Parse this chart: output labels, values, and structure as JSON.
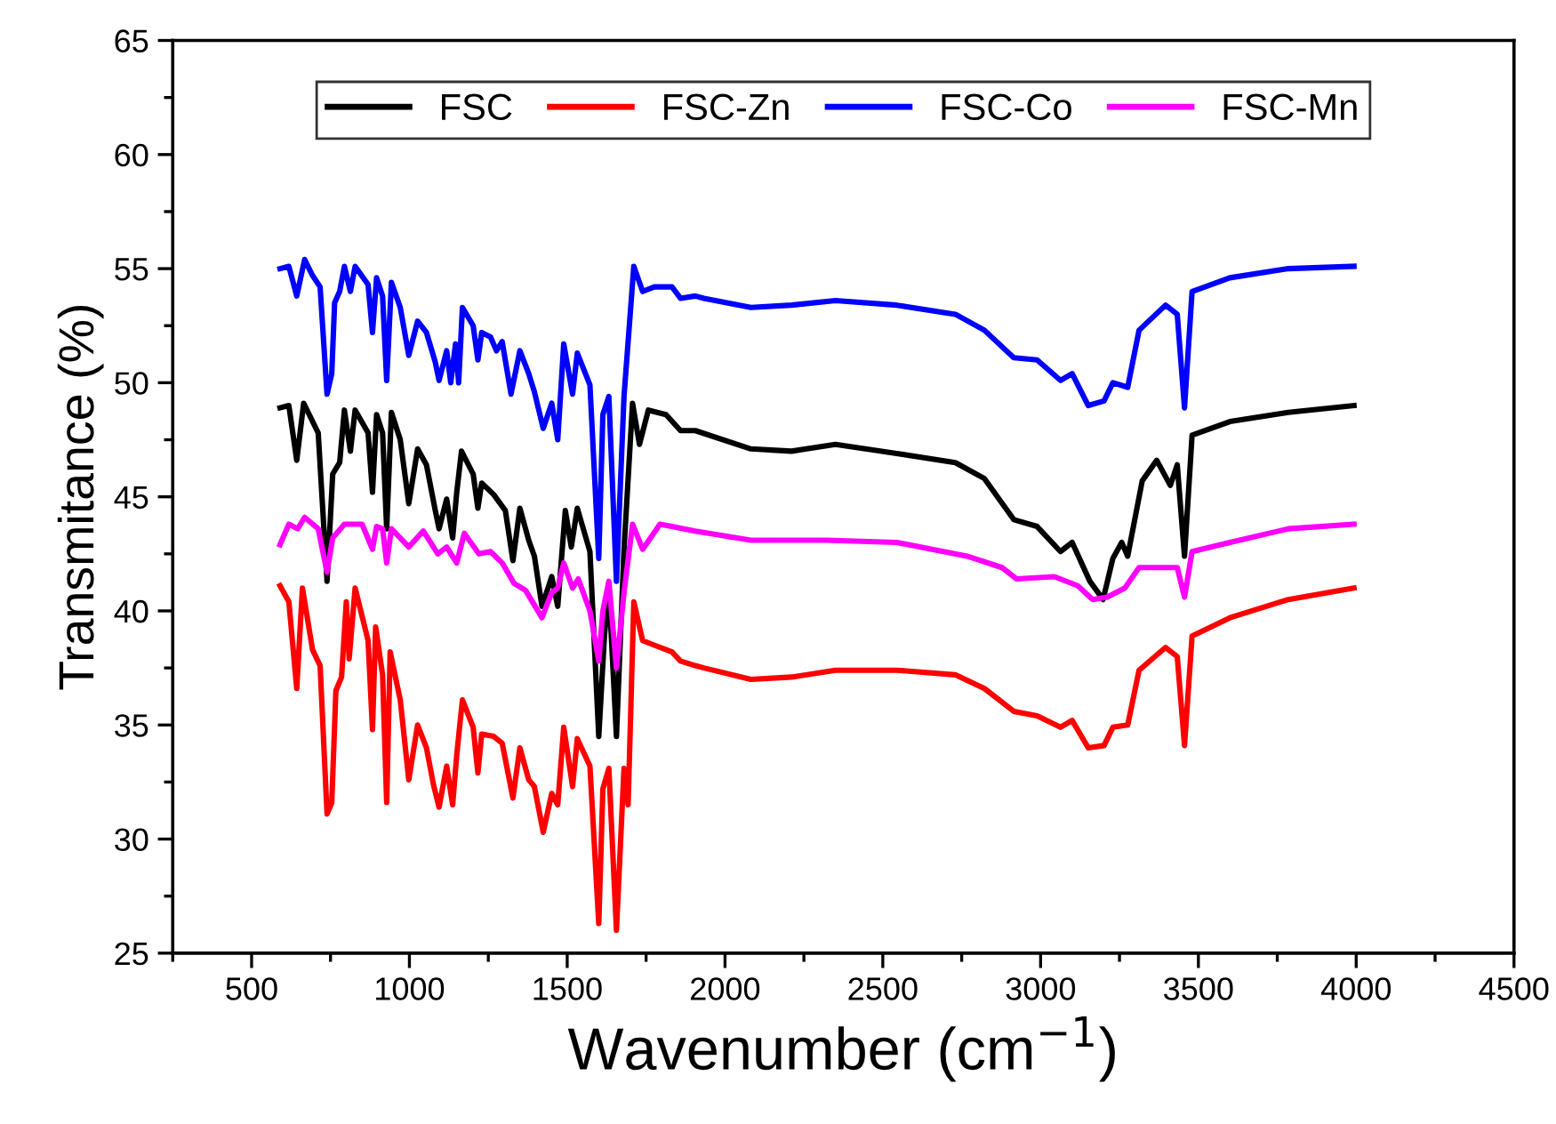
{
  "chart_data": {
    "type": "line",
    "xlabel": "Wavenumber (cm$^{−1}$)",
    "ylabel": "Transmitance (%)",
    "xlim": [
      250,
      4500
    ],
    "xticks": [
      500,
      1000,
      1500,
      2000,
      2500,
      3000,
      3500,
      4000,
      4500
    ],
    "ylim": [
      25,
      65
    ],
    "yticks": [
      25,
      30,
      35,
      40,
      45,
      50,
      55,
      60,
      65
    ],
    "grid": false,
    "legend": "top",
    "marker": "none",
    "line_style": "solid",
    "series": [
      {
        "name": "FSC",
        "color": "#000000",
        "x": [
          590,
          618,
          643,
          665,
          711,
          739,
          757,
          779,
          794,
          813,
          828,
          869,
          883,
          896,
          915,
          928,
          943,
          971,
          998,
          1026,
          1054,
          1082,
          1094,
          1118,
          1137,
          1150,
          1165,
          1202,
          1217,
          1229,
          1267,
          1304,
          1328,
          1350,
          1378,
          1396,
          1420,
          1451,
          1470,
          1494,
          1513,
          1532,
          1572,
          1600,
          1618,
          1632,
          1656,
          1680,
          1707,
          1729,
          1757,
          1813,
          1859,
          1906,
          2082,
          2211,
          2350,
          2544,
          2730,
          2822,
          2915,
          2989,
          3063,
          3100,
          3156,
          3198,
          3229,
          3257,
          3276,
          3322,
          3368,
          3411,
          3433,
          3456,
          3480,
          3600,
          3785,
          3993
        ],
        "values": [
          48.9,
          49.0,
          46.6,
          49.1,
          47.8,
          41.3,
          46.0,
          46.5,
          48.8,
          47.0,
          48.8,
          47.8,
          45.2,
          48.6,
          47.8,
          43.6,
          48.7,
          47.5,
          44.7,
          47.1,
          46.4,
          44.4,
          43.6,
          44.9,
          43.2,
          45.2,
          47.0,
          46.0,
          44.5,
          45.6,
          45.1,
          44.4,
          42.2,
          44.5,
          43.1,
          42.4,
          40.2,
          41.5,
          40.2,
          44.4,
          42.8,
          44.5,
          42.6,
          34.5,
          38.9,
          41.0,
          34.5,
          42.7,
          49.1,
          47.3,
          48.8,
          48.6,
          47.9,
          47.9,
          47.1,
          47.0,
          47.3,
          46.9,
          46.5,
          45.8,
          44.0,
          43.7,
          42.6,
          43.0,
          41.3,
          40.5,
          42.3,
          43.0,
          42.4,
          45.7,
          46.6,
          45.5,
          46.4,
          42.4,
          47.7,
          48.3,
          48.7,
          49.0
        ]
      },
      {
        "name": "FSC-Zn",
        "color": "#ff0000",
        "x": [
          590,
          618,
          643,
          661,
          693,
          717,
          739,
          754,
          767,
          785,
          800,
          809,
          828,
          869,
          883,
          893,
          915,
          928,
          939,
          971,
          998,
          1026,
          1054,
          1076,
          1094,
          1118,
          1137,
          1150,
          1168,
          1202,
          1217,
          1229,
          1267,
          1294,
          1328,
          1350,
          1378,
          1396,
          1424,
          1451,
          1470,
          1489,
          1517,
          1532,
          1572,
          1600,
          1613,
          1632,
          1656,
          1680,
          1693,
          1711,
          1739,
          1776,
          1832,
          1859,
          1906,
          1933,
          2082,
          2211,
          2350,
          2544,
          2730,
          2822,
          2915,
          2989,
          3063,
          3100,
          3151,
          3201,
          3229,
          3276,
          3312,
          3396,
          3433,
          3456,
          3480,
          3600,
          3785,
          3993
        ],
        "values": [
          41.1,
          40.4,
          36.6,
          41.0,
          38.3,
          37.6,
          31.1,
          31.6,
          36.5,
          37.1,
          40.4,
          37.9,
          41.0,
          38.7,
          34.8,
          39.3,
          37.2,
          31.6,
          38.2,
          36.1,
          32.6,
          35.0,
          34.0,
          32.4,
          31.4,
          33.2,
          31.5,
          33.7,
          36.1,
          34.9,
          32.9,
          34.6,
          34.5,
          34.2,
          31.8,
          34.0,
          32.6,
          32.3,
          30.3,
          32.0,
          31.5,
          34.9,
          32.3,
          34.4,
          33.2,
          26.3,
          32.2,
          33.1,
          26.0,
          33.1,
          31.5,
          40.4,
          38.7,
          38.5,
          38.2,
          37.8,
          37.6,
          37.5,
          37.0,
          37.1,
          37.4,
          37.4,
          37.2,
          36.6,
          35.6,
          35.4,
          34.9,
          35.2,
          34.0,
          34.1,
          34.9,
          35.0,
          37.4,
          38.4,
          38.0,
          34.1,
          38.9,
          39.7,
          40.5,
          41.0
        ]
      },
      {
        "name": "FSC-Co",
        "color": "#0000ff",
        "x": [
          590,
          618,
          643,
          668,
          693,
          717,
          739,
          754,
          763,
          779,
          794,
          813,
          828,
          869,
          883,
          896,
          915,
          928,
          943,
          971,
          998,
          1026,
          1054,
          1082,
          1094,
          1118,
          1131,
          1146,
          1156,
          1168,
          1202,
          1217,
          1229,
          1257,
          1276,
          1294,
          1322,
          1350,
          1378,
          1396,
          1424,
          1451,
          1470,
          1489,
          1517,
          1532,
          1572,
          1600,
          1613,
          1632,
          1656,
          1680,
          1711,
          1739,
          1776,
          1832,
          1859,
          1906,
          1933,
          2082,
          2211,
          2350,
          2544,
          2730,
          2822,
          2915,
          2989,
          3063,
          3100,
          3151,
          3201,
          3229,
          3276,
          3312,
          3396,
          3433,
          3456,
          3480,
          3600,
          3785,
          3993
        ],
        "values": [
          55.0,
          55.1,
          53.8,
          55.4,
          54.7,
          54.2,
          49.5,
          50.4,
          53.5,
          54.0,
          55.1,
          54.0,
          55.1,
          54.3,
          52.2,
          54.6,
          53.8,
          50.1,
          54.4,
          53.3,
          51.2,
          52.7,
          52.2,
          50.9,
          50.1,
          51.4,
          50.0,
          51.7,
          50.0,
          53.3,
          52.5,
          51.0,
          52.2,
          52.0,
          51.4,
          51.8,
          49.5,
          51.4,
          50.4,
          49.6,
          48.0,
          49.1,
          47.5,
          51.7,
          49.5,
          51.3,
          49.9,
          42.3,
          48.6,
          49.4,
          41.3,
          49.4,
          55.1,
          54.0,
          54.2,
          54.2,
          53.7,
          53.8,
          53.7,
          53.3,
          53.4,
          53.6,
          53.4,
          53.0,
          52.3,
          51.1,
          51.0,
          50.1,
          50.4,
          49.0,
          49.2,
          50.0,
          49.8,
          52.3,
          53.4,
          53.0,
          48.9,
          54.0,
          54.6,
          55.0,
          55.1
        ]
      },
      {
        "name": "FSC-Mn",
        "color": "#ff00ff",
        "x": [
          590,
          618,
          646,
          668,
          711,
          739,
          757,
          794,
          850,
          883,
          896,
          915,
          928,
          943,
          998,
          1044,
          1090,
          1118,
          1150,
          1174,
          1220,
          1257,
          1294,
          1332,
          1368,
          1420,
          1451,
          1470,
          1489,
          1517,
          1535,
          1572,
          1600,
          1613,
          1632,
          1656,
          1680,
          1707,
          1739,
          1794,
          1906,
          2082,
          2322,
          2544,
          2767,
          2878,
          2924,
          3044,
          3118,
          3165,
          3211,
          3267,
          3312,
          3433,
          3456,
          3480,
          3600,
          3785,
          3993
        ],
        "values": [
          42.9,
          43.8,
          43.6,
          44.1,
          43.6,
          41.7,
          43.2,
          43.8,
          43.8,
          42.7,
          43.7,
          43.6,
          42.1,
          43.6,
          42.8,
          43.5,
          42.5,
          42.8,
          42.1,
          43.4,
          42.5,
          42.6,
          42.1,
          41.2,
          40.9,
          39.7,
          40.8,
          41.0,
          42.1,
          41.0,
          41.4,
          40.0,
          37.8,
          40.0,
          41.3,
          37.5,
          40.8,
          43.8,
          42.7,
          43.8,
          43.5,
          43.1,
          43.1,
          43.0,
          42.4,
          41.9,
          41.4,
          41.5,
          41.1,
          40.5,
          40.6,
          41.0,
          41.9,
          41.9,
          40.6,
          42.6,
          43.0,
          43.6,
          43.8
        ]
      }
    ]
  }
}
